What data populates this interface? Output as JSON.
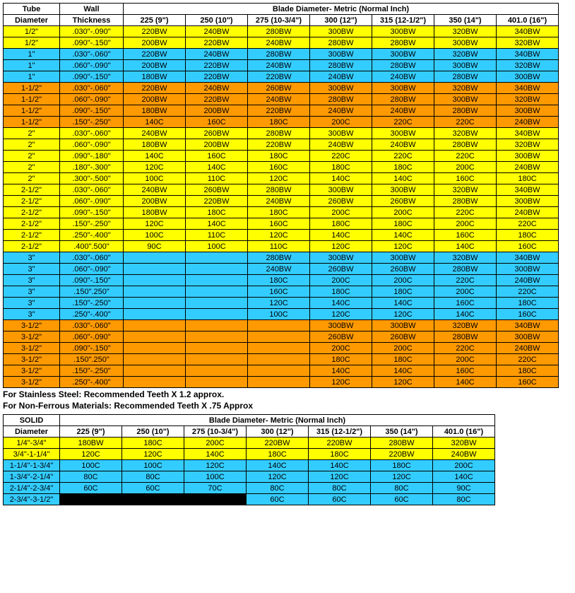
{
  "colors": {
    "yellow": "#ffff00",
    "blue": "#33ccff",
    "orange": "#ff9900",
    "black": "#000000",
    "border": "#000000",
    "text": "#000000",
    "background": "#ffffff"
  },
  "typography": {
    "font_family": "Arial, Helvetica, sans-serif",
    "cell_fontsize_pt": 8,
    "header_fontweight": "bold",
    "notes_fontsize_pt": 9,
    "notes_fontweight": "bold"
  },
  "table1": {
    "header_top": {
      "tube": "Tube",
      "wall": "Wall",
      "blade_span": "Blade Diameter- Metric (Normal Inch)"
    },
    "header_bottom": {
      "tube": "Diameter",
      "wall": "Thickness",
      "blades": [
        "225 (9\")",
        "250 (10\")",
        "275 (10-3/4\")",
        "300 (12\")",
        "315 (12-1/2\")",
        "350 (14\")",
        "401.0 (16\")"
      ]
    },
    "rows": [
      {
        "color": "yellow",
        "tube": "1/2\"",
        "wall": ".030\"-.090\"",
        "cells": [
          "220BW",
          "240BW",
          "280BW",
          "300BW",
          "300BW",
          "320BW",
          "340BW"
        ]
      },
      {
        "color": "yellow",
        "tube": "1/2\"",
        "wall": ".090\"-.150\"",
        "cells": [
          "200BW",
          "220BW",
          "240BW",
          "280BW",
          "280BW",
          "300BW",
          "320BW"
        ]
      },
      {
        "color": "blue",
        "tube": "1\"",
        "wall": ".030\"-.060\"",
        "cells": [
          "220BW",
          "240BW",
          "280BW",
          "300BW",
          "300BW",
          "320BW",
          "340BW"
        ]
      },
      {
        "color": "blue",
        "tube": "1\"",
        "wall": ".060\"-.090\"",
        "cells": [
          "200BW",
          "220BW",
          "240BW",
          "280BW",
          "280BW",
          "300BW",
          "320BW"
        ]
      },
      {
        "color": "blue",
        "tube": "1\"",
        "wall": ".090\"-.150\"",
        "cells": [
          "180BW",
          "220BW",
          "220BW",
          "240BW",
          "240BW",
          "280BW",
          "300BW"
        ]
      },
      {
        "color": "orange",
        "tube": "1-1/2\"",
        "wall": ".030\"-.060\"",
        "cells": [
          "220BW",
          "240BW",
          "260BW",
          "300BW",
          "300BW",
          "320BW",
          "340BW"
        ]
      },
      {
        "color": "orange",
        "tube": "1-1/2\"",
        "wall": ".060\"-.090\"",
        "cells": [
          "200BW",
          "220BW",
          "240BW",
          "280BW",
          "280BW",
          "300BW",
          "320BW"
        ]
      },
      {
        "color": "orange",
        "tube": "1-1/2\"",
        "wall": ".090\"-.150\"",
        "cells": [
          "180BW",
          "200BW",
          "220BW",
          "240BW",
          "240BW",
          "280BW",
          "300BW"
        ]
      },
      {
        "color": "orange",
        "tube": "1-1/2\"",
        "wall": ".150\"-.250\"",
        "cells": [
          "140C",
          "160C",
          "180C",
          "200C",
          "220C",
          "220C",
          "240BW"
        ]
      },
      {
        "color": "yellow",
        "tube": "2\"",
        "wall": ".030\"-.060\"",
        "cells": [
          "240BW",
          "260BW",
          "280BW",
          "300BW",
          "300BW",
          "320BW",
          "340BW"
        ]
      },
      {
        "color": "yellow",
        "tube": "2\"",
        "wall": ".060\"-.090\"",
        "cells": [
          "180BW",
          "200BW",
          "220BW",
          "240BW",
          "240BW",
          "280BW",
          "320BW"
        ]
      },
      {
        "color": "yellow",
        "tube": "2\"",
        "wall": ".090\"-.180\"",
        "cells": [
          "140C",
          "160C",
          "180C",
          "220C",
          "220C",
          "220C",
          "300BW"
        ]
      },
      {
        "color": "yellow",
        "tube": "2\"",
        "wall": ".180\"-.300\"",
        "cells": [
          "120C",
          "140C",
          "160C",
          "180C",
          "180C",
          "200C",
          "240BW"
        ]
      },
      {
        "color": "yellow",
        "tube": "2\"",
        "wall": ".300\"-.500\"",
        "cells": [
          "100C",
          "110C",
          "120C",
          "140C",
          "140C",
          "160C",
          "180C"
        ]
      },
      {
        "color": "yellow",
        "tube": "2-1/2\"",
        "wall": ".030\"-.060\"",
        "cells": [
          "240BW",
          "260BW",
          "280BW",
          "300BW",
          "300BW",
          "320BW",
          "340BW"
        ]
      },
      {
        "color": "yellow",
        "tube": "2-1/2\"",
        "wall": ".060\"-.090\"",
        "cells": [
          "200BW",
          "220BW",
          "240BW",
          "260BW",
          "260BW",
          "280BW",
          "300BW"
        ]
      },
      {
        "color": "yellow",
        "tube": "2-1/2\"",
        "wall": ".090\"-.150\"",
        "cells": [
          "180BW",
          "180C",
          "180C",
          "200C",
          "200C",
          "220C",
          "240BW"
        ]
      },
      {
        "color": "yellow",
        "tube": "2-1/2\"",
        "wall": ".150\"-.250\"",
        "cells": [
          "120C",
          "140C",
          "160C",
          "180C",
          "180C",
          "200C",
          "220C"
        ]
      },
      {
        "color": "yellow",
        "tube": "2-1/2\"",
        "wall": ".250\"-.400\"",
        "cells": [
          "100C",
          "110C",
          "120C",
          "140C",
          "140C",
          "160C",
          "180C"
        ]
      },
      {
        "color": "yellow",
        "tube": "2-1/2\"",
        "wall": ".400\".500\"",
        "cells": [
          "90C",
          "100C",
          "110C",
          "120C",
          "120C",
          "140C",
          "160C"
        ]
      },
      {
        "color": "blue",
        "tube": "3\"",
        "wall": ".030\"-.060\"",
        "cells": [
          "",
          "",
          "280BW",
          "300BW",
          "300BW",
          "320BW",
          "340BW"
        ]
      },
      {
        "color": "blue",
        "tube": "3\"",
        "wall": ".060\"-.090\"",
        "cells": [
          "",
          "",
          "240BW",
          "260BW",
          "260BW",
          "280BW",
          "300BW"
        ]
      },
      {
        "color": "blue",
        "tube": "3\"",
        "wall": ".090\"-.150\"",
        "cells": [
          "",
          "",
          "180C",
          "200C",
          "200C",
          "220C",
          "240BW"
        ]
      },
      {
        "color": "blue",
        "tube": "3\"",
        "wall": ".150\".250\"",
        "cells": [
          "",
          "",
          "160C",
          "180C",
          "180C",
          "200C",
          "220C"
        ]
      },
      {
        "color": "blue",
        "tube": "3\"",
        "wall": ".150\"-.250\"",
        "cells": [
          "",
          "",
          "120C",
          "140C",
          "140C",
          "160C",
          "180C"
        ]
      },
      {
        "color": "blue",
        "tube": "3\"",
        "wall": ".250\"-.400\"",
        "cells": [
          "",
          "",
          "100C",
          "120C",
          "120C",
          "140C",
          "160C"
        ]
      },
      {
        "color": "orange",
        "tube": "3-1/2\"",
        "wall": ".030\"-.060\"",
        "cells": [
          "",
          "",
          "",
          "300BW",
          "300BW",
          "320BW",
          "340BW"
        ]
      },
      {
        "color": "orange",
        "tube": "3-1/2\"",
        "wall": ".060\"-.090\"",
        "cells": [
          "",
          "",
          "",
          "260BW",
          "260BW",
          "280BW",
          "300BW"
        ]
      },
      {
        "color": "orange",
        "tube": "3-1/2\"",
        "wall": ".090\"-.150\"",
        "cells": [
          "",
          "",
          "",
          "200C",
          "200C",
          "220C",
          "240BW"
        ]
      },
      {
        "color": "orange",
        "tube": "3-1/2\"",
        "wall": ".150\".250\"",
        "cells": [
          "",
          "",
          "",
          "180C",
          "180C",
          "200C",
          "220C"
        ]
      },
      {
        "color": "orange",
        "tube": "3-1/2\"",
        "wall": ".150\"-.250\"",
        "cells": [
          "",
          "",
          "",
          "140C",
          "140C",
          "160C",
          "180C"
        ]
      },
      {
        "color": "orange",
        "tube": "3-1/2\"",
        "wall": ".250\"-.400\"",
        "cells": [
          "",
          "",
          "",
          "120C",
          "120C",
          "140C",
          "160C"
        ]
      }
    ]
  },
  "notes": {
    "line1": "For Stainless  Steel: Recommended Teeth X 1.2 approx.",
    "line2": "For Non-Ferrous Materials: Recommended Teeth X .75 Approx"
  },
  "table2": {
    "header_top": {
      "solid": "SOLID",
      "blade_span": "Blade Diameter- Metric (Normal Inch)"
    },
    "header_bottom": {
      "solid": "Diameter",
      "blades": [
        "225 (9\")",
        "250 (10\")",
        "275 (10-3/4\")",
        "300 (12\")",
        "315 (12-1/2\")",
        "350 (14\")",
        "401.0 (16\")"
      ]
    },
    "rows": [
      {
        "color": "yellow",
        "solid": "1/4\"-3/4\"",
        "cells": [
          "180BW",
          "180C",
          "200C",
          "220BW",
          "220BW",
          "280BW",
          "320BW"
        ]
      },
      {
        "color": "yellow",
        "solid": "3/4\"-1-1/4\"",
        "cells": [
          "120C",
          "120C",
          "140C",
          "180C",
          "180C",
          "220BW",
          "240BW"
        ]
      },
      {
        "color": "blue",
        "solid": "1-1/4\"-1-3/4\"",
        "cells": [
          "100C",
          "100C",
          "120C",
          "140C",
          "140C",
          "180C",
          "200C"
        ]
      },
      {
        "color": "blue",
        "solid": "1-3/4\"-2-1/4\"",
        "cells": [
          "80C",
          "80C",
          "100C",
          "120C",
          "120C",
          "120C",
          "140C"
        ]
      },
      {
        "color": "blue",
        "solid": "2-1/4\"-2-3/4\"",
        "cells": [
          "60C",
          "60C",
          "70C",
          "80C",
          "80C",
          "80C",
          "90C"
        ]
      },
      {
        "color": "blue",
        "solid": "2-3/4\"-3-1/2\"",
        "cells": [
          "",
          "",
          "",
          "60C",
          "60C",
          "60C",
          "80C"
        ],
        "blackout": [
          0,
          1,
          2
        ]
      }
    ]
  }
}
